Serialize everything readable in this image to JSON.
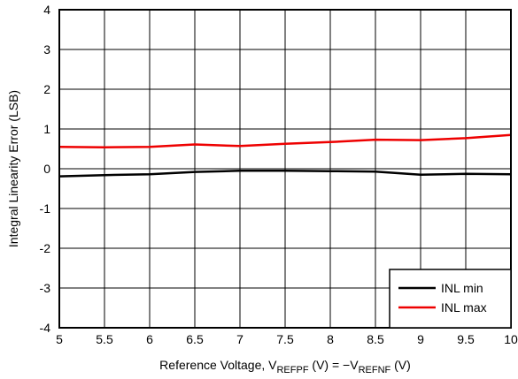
{
  "chart_data": {
    "type": "line",
    "xlabel_main": "Reference Voltage, V",
    "xlabel_sub1": "REFPF",
    "xlabel_mid": " (V) = −V",
    "xlabel_sub2": "REFNF",
    "xlabel_tail": " (V)",
    "ylabel": "Integral Linearity Error (LSB)",
    "xlim": [
      5,
      10
    ],
    "ylim": [
      -4,
      4
    ],
    "xticks": [
      "5",
      "5.5",
      "6",
      "6.5",
      "7",
      "7.5",
      "8",
      "8.5",
      "9",
      "9.5",
      "10"
    ],
    "yticks": [
      "4",
      "3",
      "2",
      "1",
      "0",
      "-1",
      "-2",
      "-3",
      "-4"
    ],
    "grid": true,
    "legend_position": "bottom-right",
    "series": [
      {
        "name": "INL min",
        "color": "#000000",
        "x": [
          5,
          5.5,
          6,
          6.5,
          7,
          7.5,
          8,
          8.5,
          9,
          9.5,
          10
        ],
        "y": [
          -0.19,
          -0.16,
          -0.14,
          -0.08,
          -0.05,
          -0.05,
          -0.06,
          -0.07,
          -0.15,
          -0.13,
          -0.14
        ]
      },
      {
        "name": "INL max",
        "color": "#ee0000",
        "x": [
          5,
          5.5,
          6,
          6.5,
          7,
          7.5,
          8,
          8.5,
          9,
          9.5,
          10
        ],
        "y": [
          0.55,
          0.54,
          0.55,
          0.61,
          0.57,
          0.63,
          0.67,
          0.73,
          0.72,
          0.77,
          0.85
        ]
      }
    ]
  }
}
